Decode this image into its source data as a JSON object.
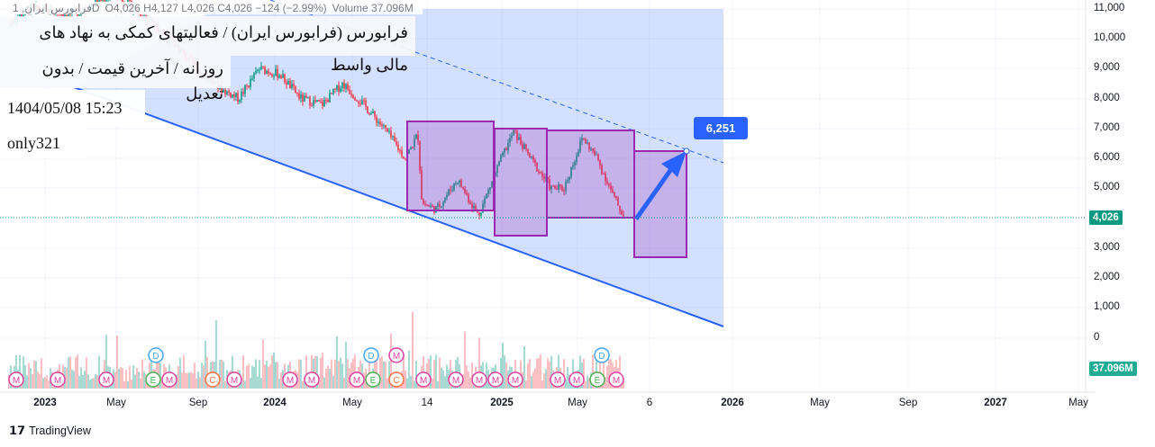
{
  "legend": {
    "symbol": "فرابورس ایران, 1D",
    "ohlc": "O4,026 H4,127 L4,026 C4,026 −124 (−2.99%)",
    "volume": "Volume 37.096M"
  },
  "info": {
    "line1": "فرابورس (فرابورس ایران) / فعالیتهای کمکی به نهاد های مالی واسط",
    "line2": "روزانه / آخرین قیمت / بدون تعدیل",
    "line3": "1404/05/08 15:23",
    "line4": "only321"
  },
  "price_axis": [
    "11,000",
    "10,000",
    "9,000",
    "8,000",
    "7,000",
    "6,000",
    "5,000",
    "3,000",
    "2,000",
    "1,000",
    "0"
  ],
  "last_price": "4,026",
  "last_volume": "37.096M",
  "time_axis": [
    "2023",
    "May",
    "Sep",
    "2024",
    "May",
    "14",
    "2025",
    "May",
    "6",
    "2026",
    "May",
    "Sep",
    "2027",
    "May"
  ],
  "target_label": "6,251",
  "events": [
    "M",
    "M",
    "M",
    "D",
    "E",
    "M",
    "M",
    "C",
    "M",
    "M",
    "M",
    "D",
    "M",
    "E",
    "C",
    "M",
    "M",
    "M",
    "M",
    "M",
    "M",
    "D",
    "E",
    "M",
    "M"
  ],
  "colors": {
    "up": "#089981",
    "down": "#f23645",
    "accent": "#2962ff",
    "box": "#9c27b0",
    "last": "#089981"
  },
  "footer": "TradingView",
  "chart_data": {
    "type": "candlestick",
    "price_points": [
      [
        0,
        10500
      ],
      [
        1,
        11000
      ],
      [
        3,
        10800
      ],
      [
        5,
        11500
      ],
      [
        7,
        10500
      ],
      [
        9,
        9000
      ],
      [
        10,
        8400
      ],
      [
        11,
        8000
      ],
      [
        12,
        9000
      ],
      [
        13,
        8800
      ],
      [
        14,
        8000
      ],
      [
        15,
        7800
      ],
      [
        16,
        8500
      ],
      [
        17,
        7800
      ],
      [
        18,
        7000
      ],
      [
        19,
        6000
      ],
      [
        19.6,
        6800
      ],
      [
        19.8,
        4500
      ],
      [
        20.5,
        4300
      ],
      [
        21.5,
        5300
      ],
      [
        22.5,
        4100
      ],
      [
        23.6,
        6000
      ],
      [
        24.2,
        6900
      ],
      [
        25,
        6000
      ],
      [
        26,
        5000
      ],
      [
        26.6,
        5000
      ],
      [
        27.5,
        6700
      ],
      [
        28.2,
        6000
      ],
      [
        29,
        4700
      ],
      [
        29.5,
        4026
      ]
    ]
  }
}
